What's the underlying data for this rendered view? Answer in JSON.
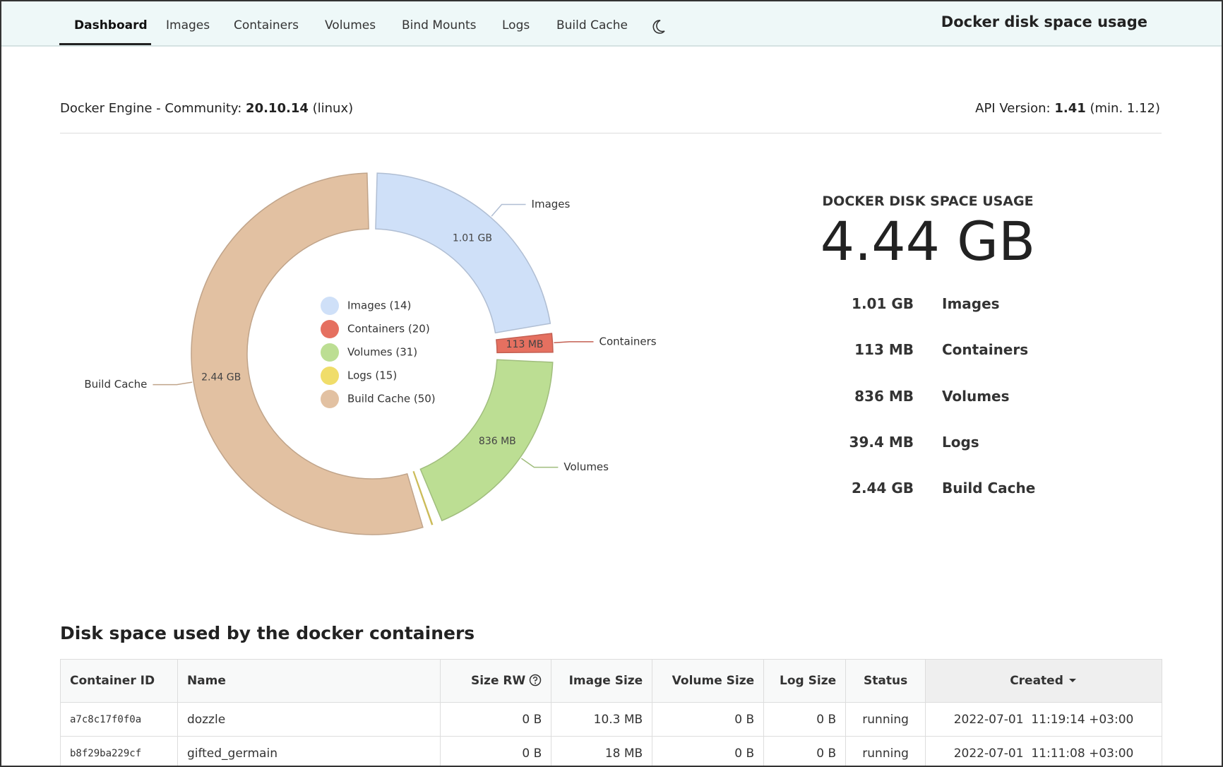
{
  "nav": {
    "tabs": [
      "Dashboard",
      "Images",
      "Containers",
      "Volumes",
      "Bind Mounts",
      "Logs",
      "Build Cache"
    ],
    "title": "Docker disk space usage"
  },
  "engine": {
    "label": "Docker Engine - Community:",
    "version": "20.10.14",
    "os": "(linux)",
    "api_label": "API Version:",
    "api_version": "1.41",
    "api_min": "(min. 1.12)"
  },
  "chart_data": {
    "type": "donut",
    "categories": [
      "Images",
      "Containers",
      "Volumes",
      "Logs",
      "Build Cache"
    ],
    "values": [
      1.01,
      0.113,
      0.836,
      0.0394,
      2.44
    ],
    "value_labels": [
      "1.01 GB",
      "113 MB",
      "836 MB",
      "39.4 MB",
      "2.44 GB"
    ],
    "colors": [
      "#cfe0f8",
      "#e57060",
      "#bcde93",
      "#f0dd6a",
      "#e2c1a2"
    ],
    "legend": [
      "Images (14)",
      "Containers (20)",
      "Volumes (31)",
      "Logs (15)",
      "Build Cache (50)"
    ]
  },
  "summary": {
    "title": "DOCKER DISK SPACE USAGE",
    "total": "4.44 GB"
  },
  "table": {
    "title": "Disk space used by the docker containers",
    "columns": [
      "Container ID",
      "Name",
      "Size RW",
      "Image Size",
      "Volume Size",
      "Log Size",
      "Status",
      "Created"
    ],
    "rows": [
      [
        "a7c8c17f0f0a",
        "dozzle",
        "0 B",
        "10.3 MB",
        "0 B",
        "0 B",
        "running",
        "2022-07-01  11:19:14 +03:00"
      ],
      [
        "b8f29ba229cf",
        "gifted_germain",
        "0 B",
        "18 MB",
        "0 B",
        "0 B",
        "running",
        "2022-07-01  11:11:08 +03:00"
      ]
    ]
  }
}
